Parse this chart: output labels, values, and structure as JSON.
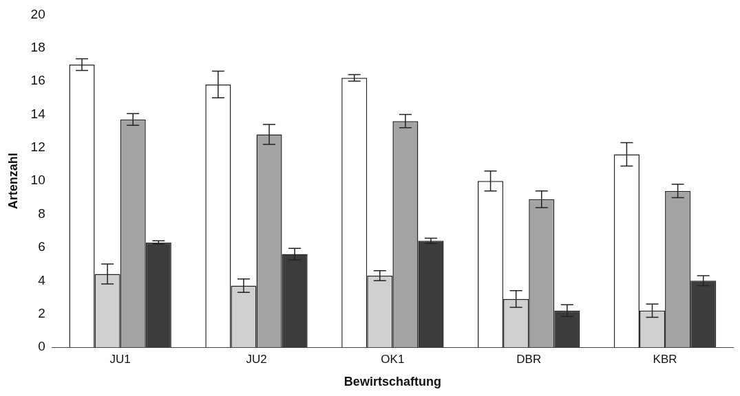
{
  "chart_data": {
    "type": "bar",
    "xlabel": "Bewirtschaftung",
    "ylabel": "Artenzahl",
    "categories": [
      "JU1",
      "JU2",
      "OK1",
      "DBR",
      "KBR"
    ],
    "series": [
      {
        "color": "#ffffff",
        "values": [
          17.0,
          15.8,
          16.2,
          10.0,
          11.6
        ],
        "errors": [
          0.35,
          0.8,
          0.2,
          0.6,
          0.7
        ]
      },
      {
        "color": "#d0d0d0",
        "values": [
          4.4,
          3.7,
          4.3,
          2.9,
          2.2
        ],
        "errors": [
          0.6,
          0.4,
          0.3,
          0.5,
          0.4
        ]
      },
      {
        "color": "#a4a4a4",
        "values": [
          13.7,
          12.8,
          13.6,
          8.9,
          9.4
        ],
        "errors": [
          0.35,
          0.6,
          0.4,
          0.5,
          0.4
        ]
      },
      {
        "color": "#3c3c3c",
        "values": [
          6.3,
          5.6,
          6.4,
          2.2,
          4.0
        ],
        "errors": [
          0.1,
          0.35,
          0.15,
          0.35,
          0.3
        ]
      }
    ],
    "ylim": [
      0,
      20
    ],
    "yticks": [
      0,
      2,
      4,
      6,
      8,
      10,
      12,
      14,
      16,
      18,
      20
    ],
    "grid": false,
    "legend": false
  }
}
